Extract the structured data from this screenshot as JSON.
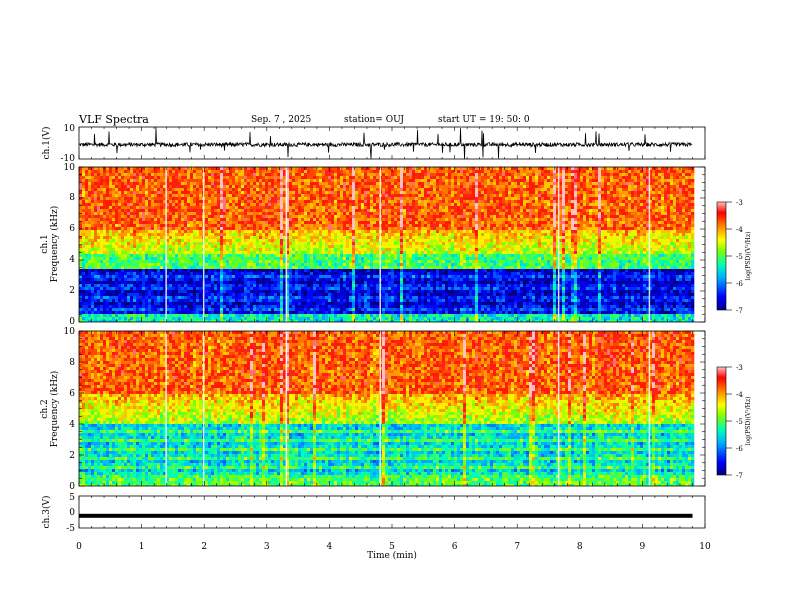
{
  "header": {
    "title": "VLF Spectra",
    "date": "Sep. 7 , 2025",
    "station": "station= OUJ",
    "start": "start UT =  19: 50: 0"
  },
  "chart_data": [
    {
      "type": "line",
      "name": "ch1-waveform",
      "ylabel": "ch.1(V)",
      "ylim": [
        -10,
        10
      ],
      "yticks": [
        "10",
        "-10"
      ],
      "description_series": "noisy waveform around -1 V with spikes"
    },
    {
      "type": "heatmap",
      "name": "ch1-spectrogram",
      "ylabel_line1": "ch.1",
      "ylabel_line2": "Frequency (kHz)",
      "ylim": [
        0,
        10
      ],
      "yticks": [
        "0",
        "2",
        "4",
        "6",
        "8",
        "10"
      ],
      "xlim": [
        0,
        10
      ],
      "data_xmax": 9.8,
      "colorbar": {
        "range": [
          -7,
          -3
        ],
        "ticks": [
          "-3",
          "-4",
          "-5",
          "-6",
          "-7"
        ],
        "label": "log(PSD)(V²/Hz)"
      }
    },
    {
      "type": "heatmap",
      "name": "ch2-spectrogram",
      "ylabel_line1": "ch.2",
      "ylabel_line2": "Frequency (kHz)",
      "ylim": [
        0,
        10
      ],
      "yticks": [
        "0",
        "2",
        "4",
        "6",
        "8",
        "10"
      ],
      "xlim": [
        0,
        10
      ],
      "data_xmax": 9.8,
      "colorbar": {
        "range": [
          -7,
          -3
        ],
        "ticks": [
          "-3",
          "-4",
          "-5",
          "-6",
          "-7"
        ],
        "label": "log(PSD)(V²/Hz)"
      }
    },
    {
      "type": "line",
      "name": "ch3-waveform",
      "ylabel": "ch.3(V)",
      "ylim": [
        -5,
        5
      ],
      "yticks": [
        "5",
        "0",
        "-5"
      ],
      "constant_value": -1.2,
      "xlabel": "Time (min)",
      "xticks": [
        "0",
        "1",
        "2",
        "3",
        "4",
        "5",
        "6",
        "7",
        "8",
        "9",
        "10"
      ]
    }
  ],
  "colors": {
    "colormap": [
      "#00007f",
      "#0000ff",
      "#007fff",
      "#00ffff",
      "#7fff7f",
      "#ffff00",
      "#ff7f00",
      "#ff0000",
      "#ff8080"
    ]
  }
}
